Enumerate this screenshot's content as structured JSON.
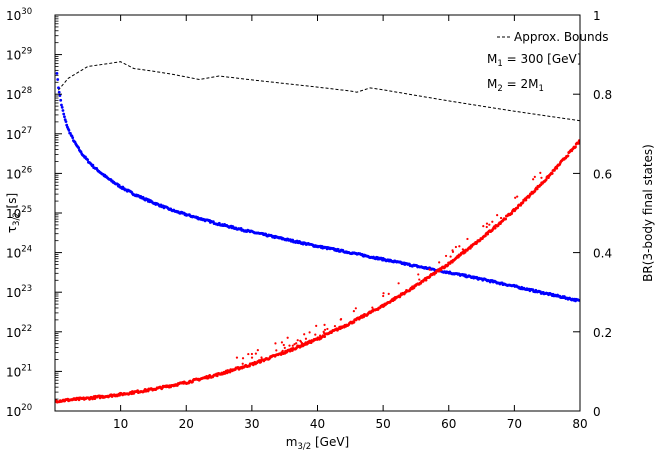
{
  "chart_data": {
    "type": "scatter",
    "x": {
      "label_main": "m",
      "label_sub": "3/2",
      "label_unit": " [GeV]",
      "range": [
        0,
        80
      ],
      "ticks": [
        10,
        20,
        30,
        40,
        50,
        60,
        70,
        80
      ]
    },
    "y_left": {
      "label_main": "τ",
      "label_sub": "3/2",
      "label_unit": " [s]",
      "scale": "log",
      "range_exponents": [
        20,
        30
      ],
      "tick_base": "10",
      "tick_exponents": [
        20,
        21,
        22,
        23,
        24,
        25,
        26,
        27,
        28,
        29,
        30
      ]
    },
    "y_right": {
      "label": "BR(3-body final states)",
      "range": [
        0,
        1
      ],
      "ticks": [
        "0",
        "0.2",
        "0.4",
        "0.6",
        "0.8",
        "1"
      ]
    },
    "legend": {
      "placement": "top-right",
      "entries": [
        {
          "name": "Approx. Bounds",
          "style": "dashed",
          "color": "#000000"
        }
      ],
      "annotations": [
        {
          "main": "M",
          "sub": "1",
          "rest": " = 300 [GeV]"
        },
        {
          "main": "M",
          "sub": "2",
          "rest": " = 2M",
          "sub2": "1"
        }
      ]
    },
    "series": [
      {
        "name": "Approx. Bounds",
        "axis": "left",
        "style": "dashed",
        "color": "#000000",
        "x": [
          0.5,
          2,
          5,
          8,
          10,
          12,
          15,
          18,
          22,
          25,
          30,
          35,
          40,
          45,
          46,
          48,
          50,
          55,
          60,
          65,
          70,
          75,
          80
        ],
        "log_y": [
          28.1,
          28.4,
          28.7,
          28.77,
          28.82,
          28.65,
          28.58,
          28.5,
          28.37,
          28.46,
          28.36,
          28.27,
          28.18,
          28.08,
          28.05,
          28.16,
          28.11,
          27.97,
          27.83,
          27.7,
          27.57,
          27.45,
          27.33
        ]
      },
      {
        "name": "",
        "axis": "left",
        "style": "points",
        "color": "#0000ff",
        "x": [
          0.3,
          0.5,
          1,
          1.5,
          2,
          3,
          4,
          5,
          6,
          8,
          10,
          12,
          15,
          18,
          20,
          25,
          30,
          35,
          40,
          45,
          50,
          55,
          60,
          65,
          70,
          75,
          80
        ],
        "log_y": [
          28.55,
          28.2,
          27.72,
          27.38,
          27.12,
          26.78,
          26.52,
          26.32,
          26.15,
          25.88,
          25.66,
          25.48,
          25.26,
          25.06,
          24.96,
          24.72,
          24.52,
          24.34,
          24.16,
          24.0,
          23.83,
          23.66,
          23.5,
          23.33,
          23.15,
          22.96,
          22.78
        ]
      },
      {
        "name": "",
        "axis": "right",
        "style": "points",
        "color": "#ff0000",
        "x": [
          0,
          5,
          10,
          15,
          20,
          25,
          30,
          35,
          40,
          45,
          50,
          55,
          60,
          65,
          70,
          75,
          80
        ],
        "br": [
          0.025,
          0.032,
          0.042,
          0.055,
          0.072,
          0.093,
          0.118,
          0.148,
          0.182,
          0.222,
          0.266,
          0.316,
          0.372,
          0.435,
          0.507,
          0.588,
          0.682
        ]
      }
    ]
  }
}
